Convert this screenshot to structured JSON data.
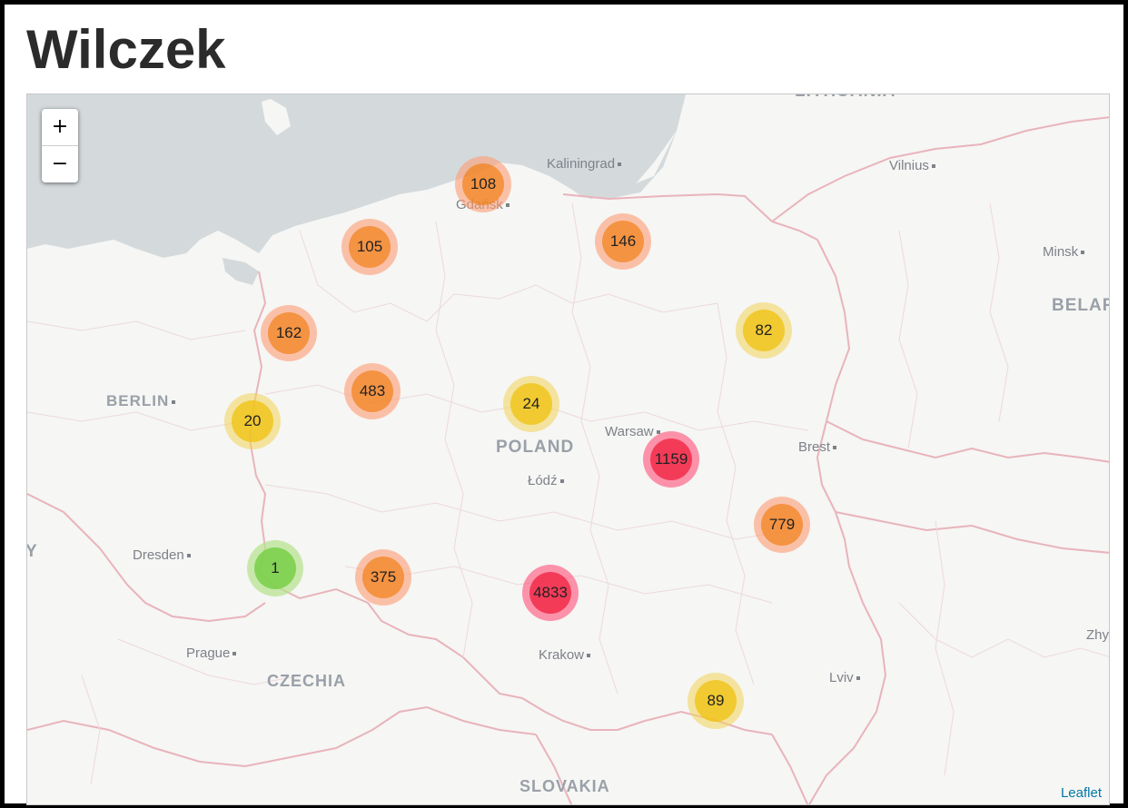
{
  "page": {
    "title": "Wilczek"
  },
  "map": {
    "zoom_in_label": "+",
    "zoom_out_label": "−",
    "attribution": "Leaflet",
    "labels": {
      "lithuania": "LITHUANIA",
      "kaliningrad": "Kaliningrad",
      "vilnius": "Vilnius",
      "gdansk": "Gdańsk",
      "minsk": "Minsk",
      "belarus": "BELAR",
      "berlin": "BERLIN",
      "warsaw": "Warsaw",
      "poland": "POLAND",
      "brest": "Brest",
      "lodz": "Łódź",
      "dresden": "Dresden",
      "prague": "Prague",
      "czechia": "CZECHIA",
      "krakow": "Krakow",
      "lviv": "Lviv",
      "slovakia": "SLOVAKIA",
      "zhy": "Zhy",
      "y": "Y"
    },
    "clusters": [
      {
        "count": "108",
        "level": "orange"
      },
      {
        "count": "105",
        "level": "orange"
      },
      {
        "count": "146",
        "level": "orange"
      },
      {
        "count": "162",
        "level": "orange"
      },
      {
        "count": "82",
        "level": "yellow"
      },
      {
        "count": "483",
        "level": "orange"
      },
      {
        "count": "24",
        "level": "yellow"
      },
      {
        "count": "20",
        "level": "yellow"
      },
      {
        "count": "1159",
        "level": "red"
      },
      {
        "count": "779",
        "level": "orange"
      },
      {
        "count": "1",
        "level": "green"
      },
      {
        "count": "375",
        "level": "orange"
      },
      {
        "count": "4833",
        "level": "red"
      },
      {
        "count": "89",
        "level": "yellow"
      }
    ],
    "colors": {
      "sea": "#d4dadc",
      "land": "#f6f6f4",
      "border": "#e8b4bb",
      "green": "#6ecc39",
      "yellow": "#f0c20c",
      "orange": "#f18017",
      "red": "#f01e3c"
    }
  }
}
